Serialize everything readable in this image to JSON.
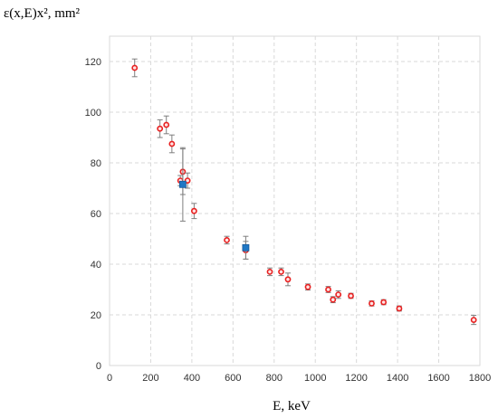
{
  "chart_data": {
    "type": "scatter",
    "ylabel": "ε(x,E)x², mm²",
    "xlabel": "E, keV",
    "xlim": [
      0,
      1800
    ],
    "ylim": [
      0,
      130
    ],
    "xticks": [
      0,
      200,
      400,
      600,
      800,
      1000,
      1200,
      1400,
      1600,
      1800
    ],
    "yticks": [
      0,
      20,
      40,
      60,
      80,
      100,
      120
    ],
    "grid": true,
    "series": [
      {
        "marker": "circle",
        "color": "#e82020",
        "points": [
          {
            "x": 122,
            "y": 117.5,
            "err": 3.5
          },
          {
            "x": 245,
            "y": 93.5,
            "err": 3.5
          },
          {
            "x": 276,
            "y": 95.0,
            "err": 3.5
          },
          {
            "x": 303,
            "y": 87.5,
            "err": 3.5
          },
          {
            "x": 344,
            "y": 73.0,
            "err": 2.0
          },
          {
            "x": 356,
            "y": 76.5,
            "err": 9.0
          },
          {
            "x": 379,
            "y": 73.0,
            "err": 3.0
          },
          {
            "x": 411,
            "y": 61.0,
            "err": 3.0
          },
          {
            "x": 570,
            "y": 49.5,
            "err": 1.5
          },
          {
            "x": 662,
            "y": 45.5,
            "err": 3.5
          },
          {
            "x": 779,
            "y": 37.0,
            "err": 1.5
          },
          {
            "x": 834,
            "y": 37.0,
            "err": 1.5
          },
          {
            "x": 867,
            "y": 34.0,
            "err": 2.5
          },
          {
            "x": 964,
            "y": 31.0,
            "err": 1.2
          },
          {
            "x": 1063,
            "y": 30.0,
            "err": 1.2
          },
          {
            "x": 1086,
            "y": 26.0,
            "err": 1.2
          },
          {
            "x": 1112,
            "y": 28.0,
            "err": 1.5
          },
          {
            "x": 1173,
            "y": 27.5,
            "err": 1.0
          },
          {
            "x": 1274,
            "y": 24.5,
            "err": 1.0
          },
          {
            "x": 1332,
            "y": 25.0,
            "err": 1.0
          },
          {
            "x": 1408,
            "y": 22.5,
            "err": 1.0
          },
          {
            "x": 1770,
            "y": 18.0,
            "err": 1.8
          }
        ]
      },
      {
        "marker": "square",
        "color": "#1f77c4",
        "points": [
          {
            "x": 356,
            "y": 71.5,
            "err": 14.5
          },
          {
            "x": 662,
            "y": 46.5,
            "err": 4.5
          }
        ]
      }
    ]
  }
}
